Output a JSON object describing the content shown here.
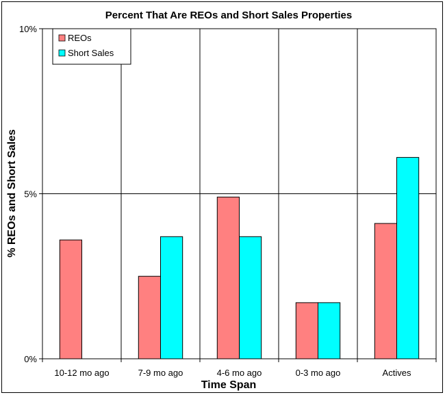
{
  "chart_data": {
    "type": "bar",
    "title": "Percent That Are REOs and Short Sales Properties",
    "xlabel": "Time Span",
    "ylabel": "% REOs and Short Sales",
    "categories": [
      "10-12 mo ago",
      "7-9 mo ago",
      "4-6 mo ago",
      "0-3 mo ago",
      "Actives"
    ],
    "series": [
      {
        "name": "REOs",
        "color": "#ff8080",
        "values": [
          3.6,
          2.5,
          4.9,
          1.7,
          4.1
        ]
      },
      {
        "name": "Short Sales",
        "color": "#00ffff",
        "values": [
          0,
          3.7,
          3.7,
          1.7,
          6.1
        ]
      }
    ],
    "ylim": [
      0,
      10
    ],
    "yticks": [
      0,
      5,
      10
    ],
    "ytick_labels": [
      "0%",
      "5%",
      "10%"
    ],
    "grid": "horizontal and vertical major gridlines",
    "legend_position": "top-left"
  }
}
